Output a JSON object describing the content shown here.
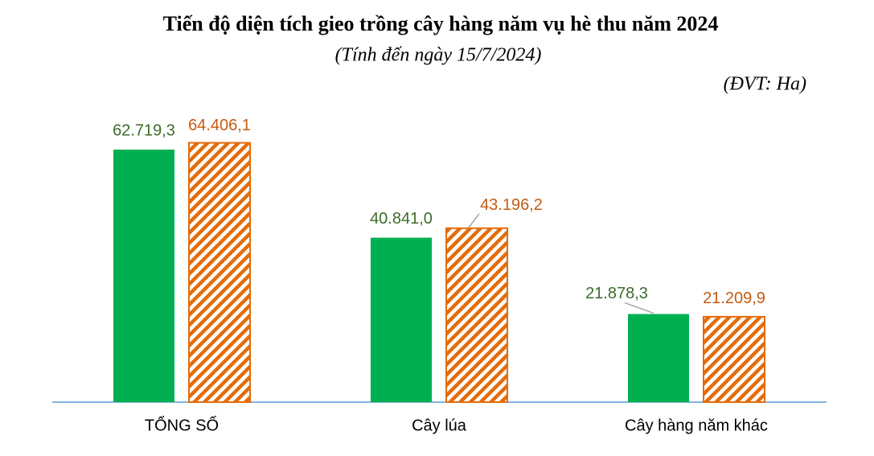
{
  "chart_data": {
    "type": "bar",
    "title": "Tiến độ diện tích gieo trồng cây hàng năm vụ hè thu năm 2024",
    "subtitle": "(Tính đến ngày 15/7/2024)",
    "unit_note": "(ĐVT: Ha)",
    "categories": [
      "TỔNG SỐ",
      "Cây lúa",
      "Cây hàng năm khác"
    ],
    "series": [
      {
        "color": "#00b050",
        "label_color": "#3d6b2a",
        "values": [
          62719.3,
          40841.0,
          21878.3
        ],
        "value_labels": [
          "62.719,3",
          "40.841,0",
          "21.878,3"
        ]
      },
      {
        "color": "#e46c0a",
        "label_color": "#c55a11",
        "hatched": true,
        "values": [
          64406.1,
          43196.2,
          21209.9
        ],
        "value_labels": [
          "64.406,1",
          "43.196,2",
          "21.209,9"
        ]
      }
    ]
  }
}
